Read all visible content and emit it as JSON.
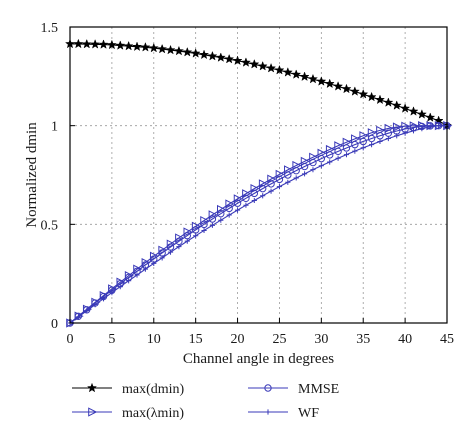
{
  "chart_data": {
    "type": "line",
    "xlabel": "Channel angle in degrees",
    "ylabel": "Normalized dmin",
    "xlim": [
      0,
      45
    ],
    "ylim": [
      0,
      1.5
    ],
    "xticks": [
      "0",
      "5",
      "10",
      "15",
      "20",
      "25",
      "30",
      "35",
      "40",
      "45"
    ],
    "yticks": [
      "0",
      "0.5",
      "1",
      "1.5"
    ],
    "grid": true,
    "legend_position": "bottom",
    "x": [
      0,
      1,
      2,
      3,
      4,
      5,
      6,
      7,
      8,
      9,
      10,
      11,
      12,
      13,
      14,
      15,
      16,
      17,
      18,
      19,
      20,
      21,
      22,
      23,
      24,
      25,
      26,
      27,
      28,
      29,
      30,
      31,
      32,
      33,
      34,
      35,
      36,
      37,
      38,
      39,
      40,
      41,
      42,
      43,
      44,
      45
    ],
    "series": [
      {
        "name": "max(dmin)",
        "marker": "star",
        "color": "#000000",
        "values": [
          1.414,
          1.414,
          1.413,
          1.412,
          1.411,
          1.409,
          1.406,
          1.403,
          1.4,
          1.397,
          1.393,
          1.388,
          1.383,
          1.378,
          1.372,
          1.366,
          1.359,
          1.352,
          1.345,
          1.337,
          1.329,
          1.32,
          1.311,
          1.301,
          1.291,
          1.281,
          1.27,
          1.259,
          1.248,
          1.236,
          1.224,
          1.212,
          1.199,
          1.186,
          1.173,
          1.159,
          1.145,
          1.131,
          1.117,
          1.102,
          1.087,
          1.072,
          1.057,
          1.041,
          1.025,
          1.0
        ]
      },
      {
        "name": "max(λmin)",
        "marker": "triangle-right",
        "color": "#3a3ab8",
        "values": [
          0.0,
          0.035,
          0.07,
          0.105,
          0.139,
          0.173,
          0.207,
          0.24,
          0.273,
          0.306,
          0.338,
          0.369,
          0.4,
          0.431,
          0.461,
          0.49,
          0.519,
          0.548,
          0.575,
          0.603,
          0.629,
          0.655,
          0.681,
          0.705,
          0.729,
          0.753,
          0.776,
          0.798,
          0.819,
          0.84,
          0.86,
          0.879,
          0.898,
          0.916,
          0.933,
          0.949,
          0.964,
          0.976,
          0.986,
          0.993,
          0.997,
          0.999,
          1.0,
          1.0,
          1.0,
          1.0
        ]
      },
      {
        "name": "MMSE",
        "marker": "circle",
        "color": "#3a3ab8",
        "values": [
          0.0,
          0.034,
          0.067,
          0.101,
          0.134,
          0.166,
          0.199,
          0.231,
          0.262,
          0.294,
          0.324,
          0.355,
          0.385,
          0.414,
          0.443,
          0.472,
          0.5,
          0.527,
          0.554,
          0.581,
          0.607,
          0.632,
          0.657,
          0.681,
          0.705,
          0.728,
          0.75,
          0.772,
          0.793,
          0.813,
          0.833,
          0.852,
          0.87,
          0.887,
          0.904,
          0.92,
          0.935,
          0.949,
          0.962,
          0.973,
          0.983,
          0.991,
          0.996,
          0.999,
          1.0,
          1.0
        ]
      },
      {
        "name": "WF",
        "marker": "plus",
        "color": "#3a3ab8",
        "values": [
          0.0,
          0.031,
          0.062,
          0.093,
          0.123,
          0.154,
          0.184,
          0.214,
          0.243,
          0.273,
          0.302,
          0.33,
          0.359,
          0.387,
          0.415,
          0.442,
          0.469,
          0.495,
          0.521,
          0.547,
          0.572,
          0.597,
          0.621,
          0.645,
          0.668,
          0.691,
          0.713,
          0.735,
          0.756,
          0.777,
          0.797,
          0.816,
          0.835,
          0.853,
          0.871,
          0.888,
          0.904,
          0.92,
          0.935,
          0.949,
          0.962,
          0.974,
          0.985,
          0.994,
          0.999,
          1.0
        ]
      }
    ]
  }
}
